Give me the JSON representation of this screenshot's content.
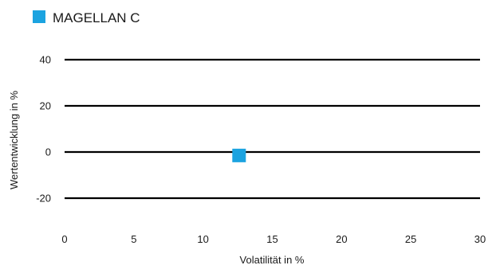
{
  "chart_data": {
    "type": "scatter",
    "xlabel": "Volatilität in %",
    "ylabel": "Wertentwicklung in %",
    "xlim": [
      0,
      30
    ],
    "ylim": [
      -30,
      50
    ],
    "x_ticks": [
      0,
      5,
      10,
      15,
      20,
      25,
      30
    ],
    "y_ticks": [
      -20,
      0,
      20,
      40
    ],
    "grid": "horizontal",
    "legend_position": "top-left",
    "series": [
      {
        "name": "MAGELLAN C",
        "color": "#1ba3e0",
        "marker": "square",
        "points": [
          {
            "x": 12.6,
            "y": -1.5
          }
        ]
      }
    ]
  }
}
